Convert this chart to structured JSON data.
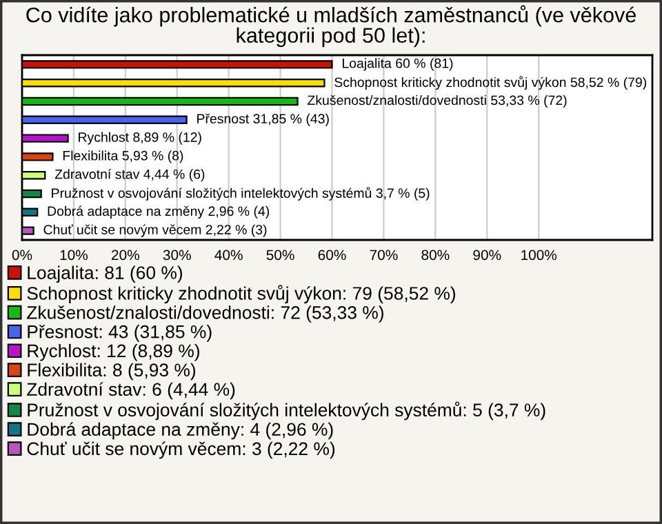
{
  "chart_data": {
    "type": "bar",
    "orientation": "horizontal",
    "stacked": true,
    "title": "Co vidíte jako problematické u mladších zaměstnanců (ve věkové kategorii pod 50 let):",
    "categories": [
      null,
      null,
      null,
      null,
      null,
      null,
      null,
      null,
      null,
      null
    ],
    "series": [
      {
        "name": "Loajalita: 81 (60 %)",
        "color": "#cc1100",
        "values": [
          60,
          null,
          null,
          null,
          null,
          null,
          null,
          null,
          null,
          null
        ],
        "value_labels": [
          "Loajalita 60 % (81)",
          null,
          null,
          null,
          null,
          null,
          null,
          null,
          null,
          null
        ]
      },
      {
        "name": "Schopnost kriticky zhodnotit svůj výkon: 79 (58,52 %)",
        "color": "#ffdd00",
        "values": [
          null,
          58.52,
          null,
          null,
          null,
          null,
          null,
          null,
          null,
          null
        ],
        "value_labels": [
          null,
          "Schopnost kriticky zhodnotit svůj výkon 58,52 % (79)",
          null,
          null,
          null,
          null,
          null,
          null,
          null,
          null
        ]
      },
      {
        "name": "Zkušenost/znalosti/dovednosti: 72 (53,33 %)",
        "color": "#11bb11",
        "values": [
          null,
          null,
          53.33,
          null,
          null,
          null,
          null,
          null,
          null,
          null
        ],
        "value_labels": [
          null,
          null,
          "Zkušenost/znalosti/dovednosti 53,33 % (72)",
          null,
          null,
          null,
          null,
          null,
          null,
          null
        ]
      },
      {
        "name": "Přesnost: 43 (31,85 %)",
        "color": "#4466ee",
        "values": [
          null,
          null,
          null,
          31.85,
          null,
          null,
          null,
          null,
          null,
          null
        ],
        "value_labels": [
          null,
          null,
          null,
          "Přesnost 31,85 % (43)",
          null,
          null,
          null,
          null,
          null,
          null
        ]
      },
      {
        "name": "Rychlost: 12 (8,89 %)",
        "color": "#bb11cc",
        "values": [
          null,
          null,
          null,
          null,
          8.89,
          null,
          null,
          null,
          null,
          null
        ],
        "value_labels": [
          null,
          null,
          null,
          null,
          "Rychlost 8,89 % (12)",
          null,
          null,
          null,
          null,
          null
        ]
      },
      {
        "name": "Flexibilita: 8 (5,93 %)",
        "color": "#dd4411",
        "values": [
          null,
          null,
          null,
          null,
          null,
          5.93,
          null,
          null,
          null,
          null
        ],
        "value_labels": [
          null,
          null,
          null,
          null,
          null,
          "Flexibilita 5,93 % (8)",
          null,
          null,
          null,
          null
        ]
      },
      {
        "name": "Zdravotní stav: 6 (4,44 %)",
        "color": "#ccff77",
        "values": [
          null,
          null,
          null,
          null,
          null,
          null,
          4.44,
          null,
          null,
          null
        ],
        "value_labels": [
          null,
          null,
          null,
          null,
          null,
          null,
          "Zdravotní stav 4,44 % (6)",
          null,
          null,
          null
        ]
      },
      {
        "name": "Pružnost v osvojování složitých intelektových systémů: 5 (3,7 %)",
        "color": "#118844",
        "values": [
          null,
          null,
          null,
          null,
          null,
          null,
          null,
          3.7,
          null,
          null
        ],
        "value_labels": [
          null,
          null,
          null,
          null,
          null,
          null,
          null,
          "Pružnost v osvojování složitých intelektových systémů 3,7 % (5)",
          null,
          null
        ]
      },
      {
        "name": "Dobrá adaptace na změny: 4 (2,96 %)",
        "color": "#117788",
        "values": [
          null,
          null,
          null,
          null,
          null,
          null,
          null,
          null,
          2.96,
          null
        ],
        "value_labels": [
          null,
          null,
          null,
          null,
          null,
          null,
          null,
          null,
          "Dobrá adaptace na změny 2,96 % (4)",
          null
        ]
      },
      {
        "name": "Chuť učit se novým věcem: 3 (2,22 %)",
        "color": "#bb55bb",
        "values": [
          null,
          null,
          null,
          null,
          null,
          null,
          null,
          null,
          null,
          2.22
        ],
        "value_labels": [
          null,
          null,
          null,
          null,
          null,
          null,
          null,
          null,
          null,
          "Chuť učit se novým věcem 2,22 % (3)"
        ]
      }
    ],
    "xlim": [
      0,
      122
    ],
    "xticks": [
      {
        "value": 0,
        "label": "0%"
      },
      {
        "value": 10,
        "label": "10%"
      },
      {
        "value": 20,
        "label": "20%"
      },
      {
        "value": 30,
        "label": "30%"
      },
      {
        "value": 40,
        "label": "40%"
      },
      {
        "value": 50,
        "label": "50%"
      },
      {
        "value": 60,
        "label": "60%"
      },
      {
        "value": 70,
        "label": "70%"
      },
      {
        "value": 80,
        "label": "80%"
      },
      {
        "value": 90,
        "label": "90%"
      },
      {
        "value": 100,
        "label": "100%"
      }
    ],
    "grid": "x",
    "legend": "bottom",
    "tick_labels": "x"
  }
}
